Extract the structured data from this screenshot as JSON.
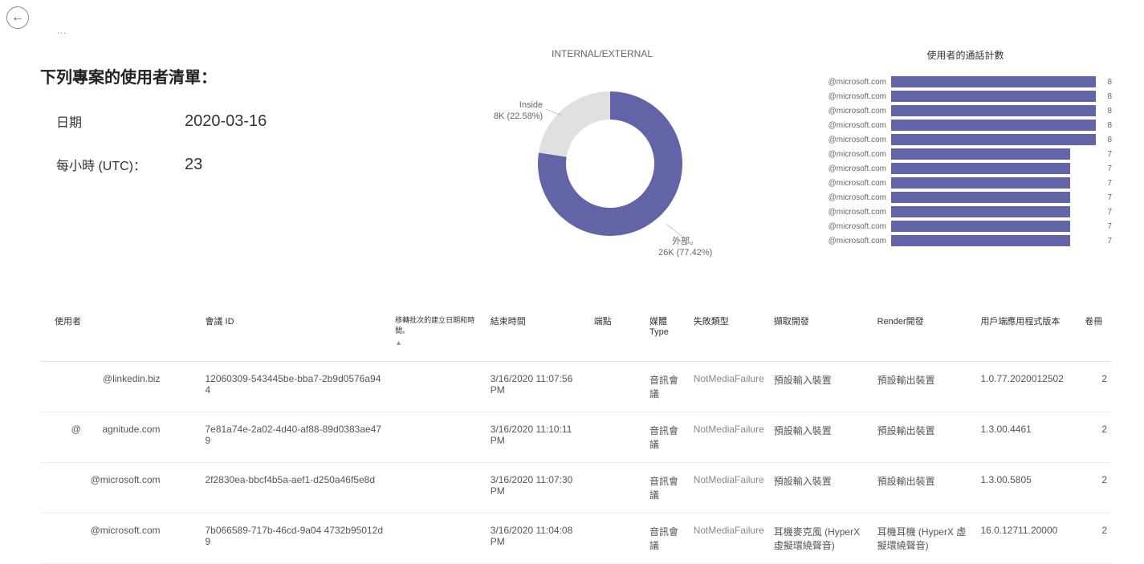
{
  "nav": {
    "back_glyph": "←",
    "ellipsis": "…"
  },
  "filters": {
    "title": "下列專案的使用者清單：",
    "date_label": "日期",
    "date_value": "2020-03-16",
    "hour_label": "每小時 (UTC)：",
    "hour_value": "23"
  },
  "donut": {
    "title": "INTERNAL/EXTERNAL",
    "inside": {
      "label": "Inside",
      "detail": "8K (22.58%)",
      "value": 22.58,
      "color": "#e0e0e0"
    },
    "outside": {
      "label": "外部。",
      "detail": "26K (77.42%)",
      "value": 77.42,
      "color": "#6264a7"
    },
    "inner_radius": 55,
    "outer_radius": 90,
    "background": "#ffffff"
  },
  "bars": {
    "title": "使用者的通話計數",
    "max": 8,
    "color": "#6264a7",
    "label_color": "#666666",
    "items": [
      {
        "label": "@microsoft.com",
        "value": 8
      },
      {
        "label": "@microsoft.com",
        "value": 8
      },
      {
        "label": "@microsoft.com",
        "value": 8
      },
      {
        "label": "@microsoft.com",
        "value": 8
      },
      {
        "label": "@microsoft.com",
        "value": 8
      },
      {
        "label": "@microsoft.com",
        "value": 7
      },
      {
        "label": "@microsoft.com",
        "value": 7
      },
      {
        "label": "@microsoft.com",
        "value": 7
      },
      {
        "label": "@microsoft.com",
        "value": 7
      },
      {
        "label": "@microsoft.com",
        "value": 7
      },
      {
        "label": "@microsoft.com",
        "value": 7
      },
      {
        "label": "@microsoft.com",
        "value": 7
      }
    ]
  },
  "table": {
    "columns": {
      "user": "使用者",
      "conf_id": "會議 ID",
      "migration": "移轉批次的建立日期和時間。",
      "end_time": "結束時間",
      "endpoint": "端點",
      "media_type": "媒體Type",
      "failure_type": "失敗類型",
      "capture_dev": "擷取開發",
      "render_dev": "Render開發",
      "client_ver": "用戶端應用程式版本",
      "volume": "卷冊"
    },
    "sort_indicator": "▲",
    "rows": [
      {
        "user": "@linkedin.biz",
        "conf_id": "12060309-543445be-bba7-2b9d0576a944",
        "migration": "",
        "end_time": "3/16/2020 11:07:56 PM",
        "endpoint": "",
        "media_type": "音訊會議",
        "failure_type": "NotMediaFailure",
        "capture_dev": "預設輸入裝置",
        "render_dev": "預設輸出裝置",
        "client_ver": "1.0.77.2020012502",
        "volume": "2"
      },
      {
        "user": "@        agnitude.com",
        "conf_id": "7e81a74e-2a02-4d40-af88-89d0383ae479",
        "migration": "",
        "end_time": "3/16/2020 11:10:11 PM",
        "endpoint": "",
        "media_type": "音訊會議",
        "failure_type": "NotMediaFailure",
        "capture_dev": "預設輸入裝置",
        "render_dev": "預設輸出裝置",
        "client_ver": "1.3.00.4461",
        "volume": "2"
      },
      {
        "user": "@microsoft.com",
        "conf_id": "2f2830ea-bbcf4b5a-aef1-d250a46f5e8d",
        "migration": "",
        "end_time": "3/16/2020 11:07:30 PM",
        "endpoint": "",
        "media_type": "音訊會議",
        "failure_type": "NotMediaFailure",
        "capture_dev": "預設輸入裝置",
        "render_dev": "預設輸出裝置",
        "client_ver": "1.3.00.5805",
        "volume": "2"
      },
      {
        "user": "@microsoft.com",
        "conf_id": "7b066589-717b-46cd-9a04 4732b95012d9",
        "migration": "",
        "end_time": "3/16/2020 11:04:08 PM",
        "endpoint": "",
        "media_type": "音訊會議",
        "failure_type": "NotMediaFailure",
        "capture_dev": "耳機麥克風 (HyperX 虛擬環繞聲音)",
        "render_dev": "耳機耳機 (HyperX 虛擬環繞聲音)",
        "client_ver": "16.0.12711.20000",
        "volume": "2"
      }
    ]
  }
}
